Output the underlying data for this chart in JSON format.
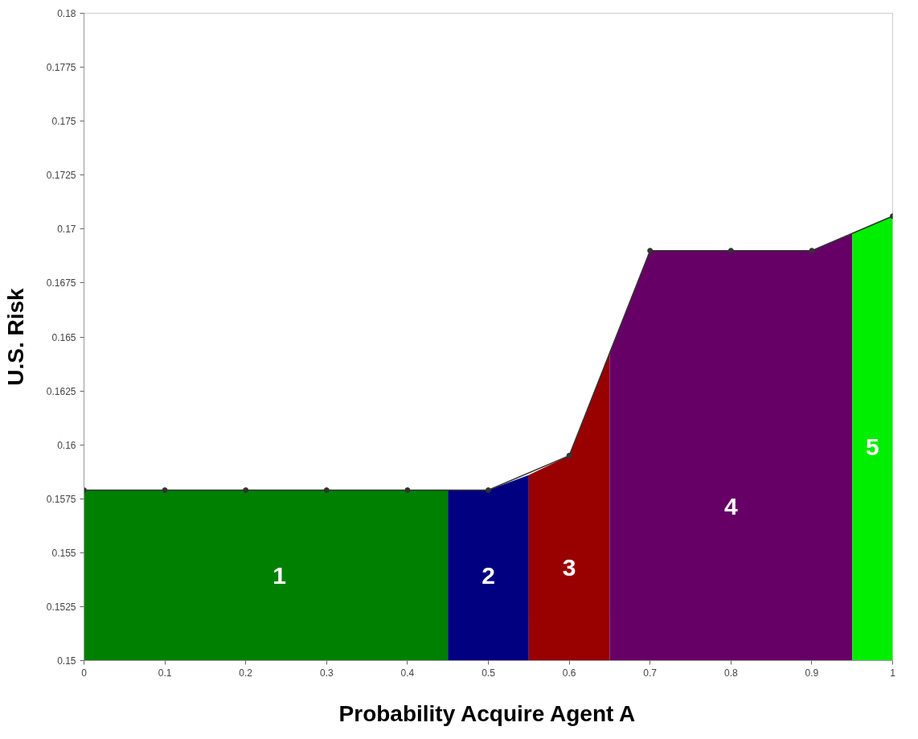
{
  "chart_data": {
    "type": "area",
    "xlabel": "Probability Acquire Agent A",
    "ylabel": "U.S. Risk",
    "xlim": [
      0,
      1
    ],
    "ylim": [
      0.15,
      0.18
    ],
    "xticks": [
      0,
      0.1,
      0.2,
      0.3,
      0.4,
      0.5,
      0.6,
      0.7,
      0.8,
      0.9,
      1
    ],
    "yticks": [
      0.15,
      0.1525,
      0.155,
      0.1575,
      0.16,
      0.1625,
      0.165,
      0.1675,
      0.17,
      0.1725,
      0.175,
      0.1775,
      0.18
    ],
    "grid": false,
    "series": [
      {
        "name": "1",
        "color": "#008000",
        "x": [
          0,
          0.1,
          0.2,
          0.3,
          0.4,
          0.45
        ],
        "values": [
          0.1579,
          0.1579,
          0.1579,
          0.1579,
          0.1579,
          0.1579
        ]
      },
      {
        "name": "2",
        "color": "#000080",
        "x": [
          0.45,
          0.5,
          0.55
        ],
        "values": [
          0.1579,
          0.1579,
          0.1586
        ]
      },
      {
        "name": "3",
        "color": "#990000",
        "x": [
          0.55,
          0.6,
          0.65
        ],
        "values": [
          0.1586,
          0.1595,
          0.1643
        ]
      },
      {
        "name": "4",
        "color": "#660066",
        "x": [
          0.65,
          0.7,
          0.8,
          0.9,
          0.95
        ],
        "values": [
          0.1643,
          0.169,
          0.169,
          0.169,
          0.1698
        ]
      },
      {
        "name": "5",
        "color": "#00ee00",
        "x": [
          0.95,
          1
        ],
        "values": [
          0.1698,
          0.1706
        ]
      },
      {
        "type": "line",
        "color": "#333333",
        "marker": "circle",
        "x": [
          0,
          0.1,
          0.2,
          0.3,
          0.4,
          0.5,
          0.6,
          0.7,
          0.8,
          0.9,
          1
        ],
        "values": [
          0.1579,
          0.1579,
          0.1579,
          0.1579,
          0.1579,
          0.1579,
          0.1595,
          0.169,
          0.169,
          0.169,
          0.1706
        ]
      }
    ]
  }
}
